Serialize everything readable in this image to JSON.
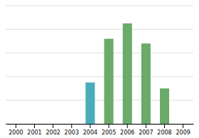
{
  "chart_data": {
    "type": "bar",
    "categories": [
      "2000",
      "2001",
      "2002",
      "2003",
      "2004",
      "2005",
      "2006",
      "2007",
      "2008",
      "2009"
    ],
    "values": [
      0,
      0,
      0,
      0,
      35,
      72,
      85,
      68,
      30,
      0
    ],
    "colors": [
      "#6aaa6a",
      "#6aaa6a",
      "#6aaa6a",
      "#6aaa6a",
      "#4aabba",
      "#6aaa6a",
      "#6aaa6a",
      "#6aaa6a",
      "#6aaa6a",
      "#6aaa6a"
    ],
    "ylim": [
      0,
      100
    ],
    "yticks": [
      0,
      20,
      40,
      60,
      80,
      100
    ],
    "grid": true,
    "tick_labels": "x"
  }
}
